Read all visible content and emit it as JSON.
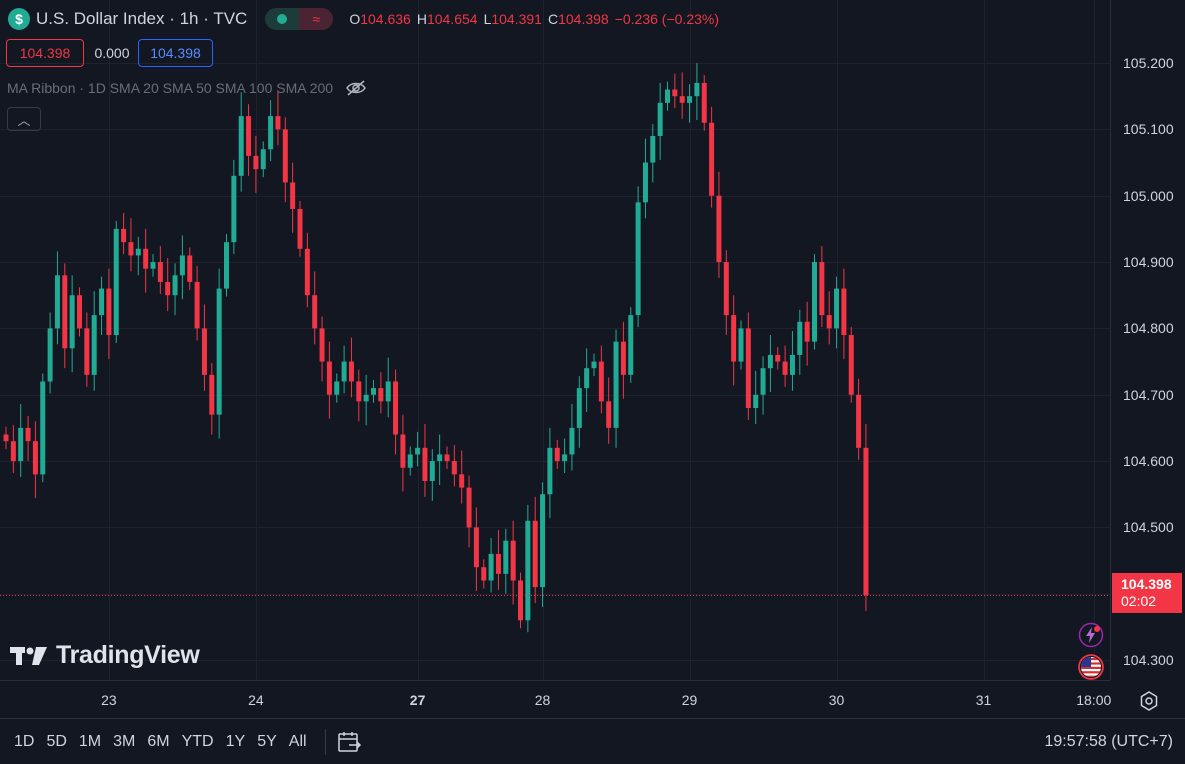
{
  "legend": {
    "badge": "$",
    "title": "U.S. Dollar Index · 1h · TVC",
    "ohlc": [
      {
        "k": "O",
        "v": "104.636"
      },
      {
        "k": "H",
        "v": "104.654"
      },
      {
        "k": "L",
        "v": "104.391"
      },
      {
        "k": "C",
        "v": "104.398"
      },
      {
        "k": "",
        "v": "−0.236 (−0.23%)"
      }
    ],
    "pill_right_glyph": "≈"
  },
  "price_boxes": {
    "bid": "104.398",
    "spread": "0.000",
    "ask": "104.398"
  },
  "indicator": {
    "label": "MA Ribbon · 1D SMA 20 SMA 50 SMA 100 SMA 200",
    "visibility_icon": "eye-off-icon"
  },
  "collapse": {
    "icon": "chevron-up-icon",
    "glyph": "︿"
  },
  "watermark": {
    "text": "TradingView"
  },
  "price_scale": {
    "labels": [
      "105.200",
      "105.100",
      "105.000",
      "104.900",
      "104.800",
      "104.700",
      "104.600",
      "104.500",
      "104.300"
    ],
    "grid_levels": [
      105.2,
      105.1,
      105.0,
      104.9,
      104.8,
      104.7,
      104.6,
      104.5,
      104.4,
      104.3
    ],
    "last_price": "104.398",
    "countdown": "02:02",
    "range": [
      104.27,
      105.295
    ]
  },
  "time_scale": {
    "labels": [
      {
        "text": "23",
        "bold": false,
        "bar": 14
      },
      {
        "text": "24",
        "bold": false,
        "bar": 34
      },
      {
        "text": "27",
        "bold": true,
        "bar": 56
      },
      {
        "text": "28",
        "bold": false,
        "bar": 73
      },
      {
        "text": "29",
        "bold": false,
        "bar": 93
      },
      {
        "text": "30",
        "bold": false,
        "bar": 113
      },
      {
        "text": "31",
        "bold": false,
        "bar": 133
      },
      {
        "text": "18:00",
        "bold": false,
        "bar": 148
      }
    ]
  },
  "timeframes": [
    "1D",
    "5D",
    "1M",
    "3M",
    "6M",
    "YTD",
    "1Y",
    "5Y",
    "All"
  ],
  "clock": "19:57:58 (UTC+7)",
  "colors": {
    "up": "#22ab94",
    "down": "#f23645",
    "background": "#131722",
    "grid": "#1e222d"
  },
  "chart_data": {
    "type": "candlestick",
    "symbol": "U.S. Dollar Index",
    "interval": "1h",
    "bars_close": [
      104.63,
      104.6,
      104.65,
      104.63,
      104.58,
      104.72,
      104.8,
      104.88,
      104.77,
      104.85,
      104.8,
      104.73,
      104.82,
      104.86,
      104.79,
      104.95,
      104.93,
      104.91,
      104.92,
      104.89,
      104.9,
      104.87,
      104.85,
      104.88,
      104.91,
      104.87,
      104.8,
      104.73,
      104.67,
      104.86,
      104.93,
      105.03,
      105.12,
      105.06,
      105.04,
      105.07,
      105.12,
      105.1,
      105.02,
      104.98,
      104.92,
      104.85,
      104.8,
      104.75,
      104.7,
      104.72,
      104.75,
      104.72,
      104.69,
      104.7,
      104.71,
      104.69,
      104.72,
      104.64,
      104.59,
      104.61,
      104.62,
      104.57,
      104.6,
      104.61,
      104.6,
      104.58,
      104.56,
      104.5,
      104.44,
      104.42,
      104.46,
      104.43,
      104.48,
      104.42,
      104.36,
      104.51,
      104.41,
      104.55,
      104.62,
      104.6,
      104.61,
      104.65,
      104.71,
      104.74,
      104.75,
      104.69,
      104.65,
      104.78,
      104.73,
      104.82,
      104.99,
      105.05,
      105.09,
      105.14,
      105.16,
      105.15,
      105.14,
      105.15,
      105.17,
      105.11,
      105.0,
      104.9,
      104.82,
      104.75,
      104.8,
      104.68,
      104.7,
      104.74,
      104.76,
      104.75,
      104.73,
      104.76,
      104.81,
      104.78,
      104.9,
      104.82,
      104.8,
      104.86,
      104.79,
      104.7,
      104.62,
      104.398
    ],
    "last": 104.398,
    "change": -0.236,
    "change_pct": -0.23
  }
}
